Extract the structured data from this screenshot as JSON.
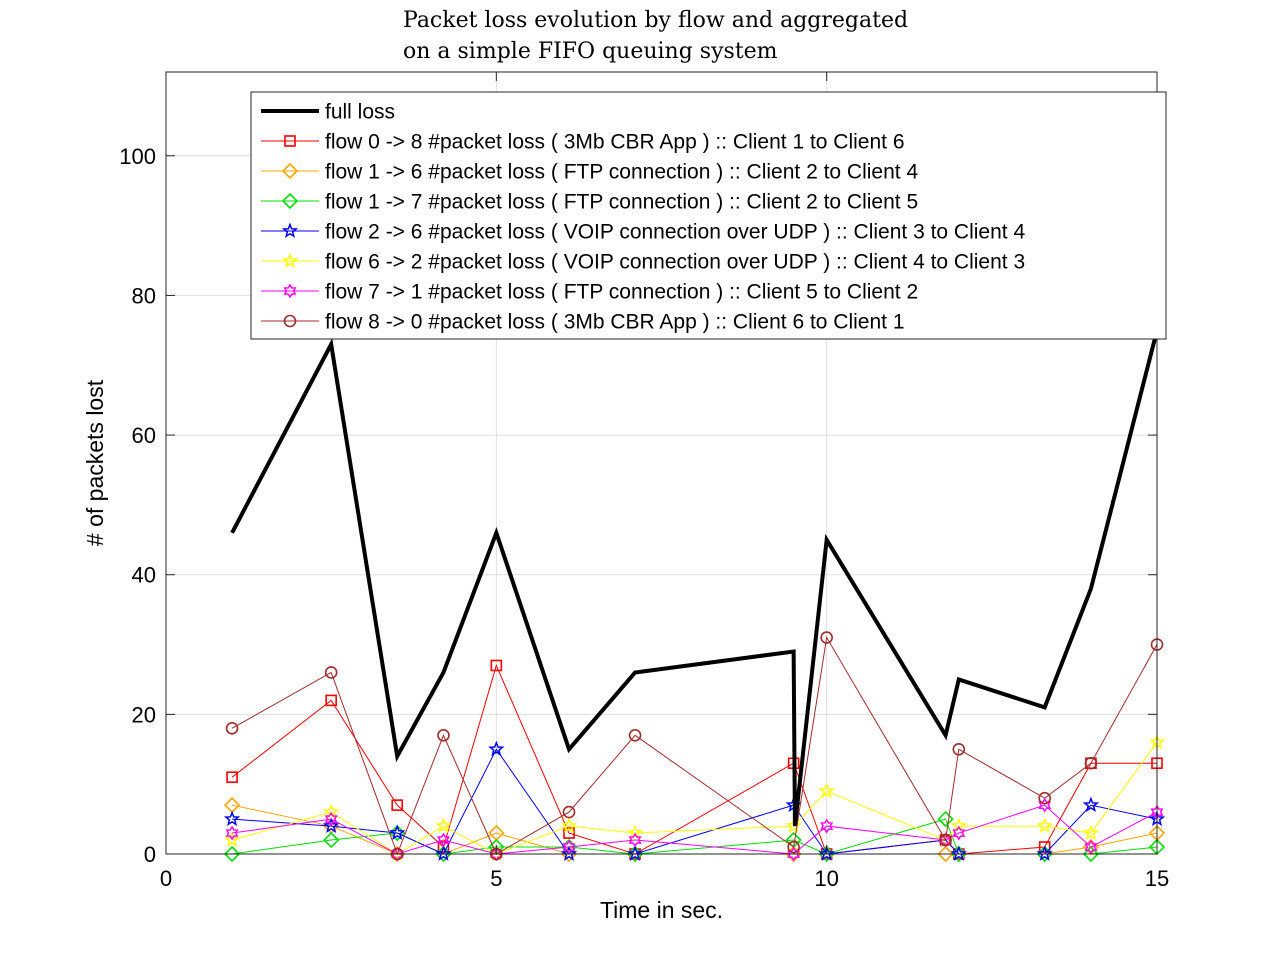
{
  "chart_data": {
    "type": "line",
    "title_lines": [
      "Packet loss evolution by flow and aggregated",
      "on a simple FIFO queuing system"
    ],
    "xlabel": "Time in sec.",
    "ylabel": "# of packets lost",
    "xlim": [
      0,
      15
    ],
    "ylim": [
      0,
      112
    ],
    "xticks": [
      0,
      5,
      10,
      15
    ],
    "yticks": [
      0,
      20,
      40,
      60,
      80,
      100
    ],
    "grid": true,
    "legend_position": "top-right",
    "series": [
      {
        "name": "full loss",
        "color": "#000000",
        "marker": "none",
        "x": [
          1,
          2.5,
          3.5,
          4.2,
          5,
          6.1,
          7.1,
          9.5,
          9.52,
          10,
          11.8,
          12,
          13.3,
          14,
          15
        ],
        "y": [
          46,
          73,
          14,
          26,
          46,
          15,
          26,
          29,
          4,
          45,
          17,
          25,
          21,
          38,
          75
        ]
      },
      {
        "name": "flow 0 -> 8 #packet loss ( 3Mb CBR App ) :: Client 1 to Client 6",
        "color": "#ff0000",
        "marker": "square",
        "x": [
          1,
          2.5,
          3.5,
          4.2,
          5,
          6.1,
          7.1,
          9.5,
          10,
          11.8,
          12,
          13.3,
          14,
          15
        ],
        "y": [
          11,
          22,
          7,
          1,
          27,
          3,
          0,
          13,
          0,
          2,
          0,
          1,
          13,
          13
        ]
      },
      {
        "name": "flow 1 -> 6 #packet loss ( FTP connection ) :: Client 2 to Client 4",
        "color": "#ffa500",
        "marker": "diamond",
        "x": [
          1,
          2.5,
          3.5,
          4.2,
          5,
          6.1,
          7.1,
          9.5,
          10,
          11.8,
          12,
          13.3,
          14,
          15
        ],
        "y": [
          7,
          4,
          0,
          0,
          3,
          0,
          0,
          0,
          0,
          0,
          0,
          0,
          1,
          3
        ]
      },
      {
        "name": "flow 1 -> 7 #packet loss ( FTP connection ) :: Client 2 to Client 5",
        "color": "#00e000",
        "marker": "diamond",
        "x": [
          1,
          2.5,
          3.5,
          4.2,
          5,
          6.1,
          7.1,
          9.5,
          10,
          11.8,
          12,
          13.3,
          14,
          15
        ],
        "y": [
          0,
          2,
          3,
          0,
          1,
          1,
          0,
          2,
          0,
          5,
          0,
          0,
          0,
          1
        ]
      },
      {
        "name": "flow 2 -> 6 #packet loss ( VOIP connection over UDP ) :: Client 3 to Client 4",
        "color": "#0000ff",
        "marker": "star",
        "x": [
          1,
          2.5,
          3.5,
          4.2,
          5,
          6.1,
          7.1,
          9.5,
          10,
          11.8,
          12,
          13.3,
          14,
          15
        ],
        "y": [
          5,
          4,
          3,
          0,
          15,
          0,
          0,
          7,
          0,
          2,
          0,
          0,
          7,
          5
        ]
      },
      {
        "name": "flow 6 -> 2 #packet loss ( VOIP connection over UDP ) :: Client 4 to Client 3",
        "color": "#ffff00",
        "marker": "star",
        "x": [
          1,
          2.5,
          3.5,
          4.2,
          5,
          6.1,
          7.1,
          9.5,
          10,
          11.8,
          12,
          13.3,
          14,
          15
        ],
        "y": [
          2,
          6,
          0,
          4,
          0,
          4,
          3,
          4,
          9,
          2,
          4,
          4,
          3,
          16
        ]
      },
      {
        "name": "flow 7 -> 1 #packet loss ( FTP connection ) :: Client 5 to Client 2",
        "color": "#ff00ff",
        "marker": "hexagram",
        "x": [
          1,
          2.5,
          3.5,
          4.2,
          5,
          6.1,
          7.1,
          9.5,
          10,
          11.8,
          12,
          13.3,
          14,
          15
        ],
        "y": [
          3,
          5,
          0,
          2,
          0,
          1,
          2,
          0,
          4,
          2,
          3,
          7,
          1,
          6
        ]
      },
      {
        "name": "flow 8 -> 0 #packet loss ( 3Mb CBR App ) :: Client 6 to Client 1",
        "color": "#a52a2a",
        "marker": "circle",
        "x": [
          1,
          2.5,
          3.5,
          4.2,
          5,
          6.1,
          7.1,
          9.5,
          10,
          11.8,
          12,
          13.3,
          14,
          15
        ],
        "y": [
          18,
          26,
          0,
          17,
          0,
          6,
          17,
          1,
          31,
          2,
          15,
          8,
          13,
          30
        ]
      }
    ]
  }
}
